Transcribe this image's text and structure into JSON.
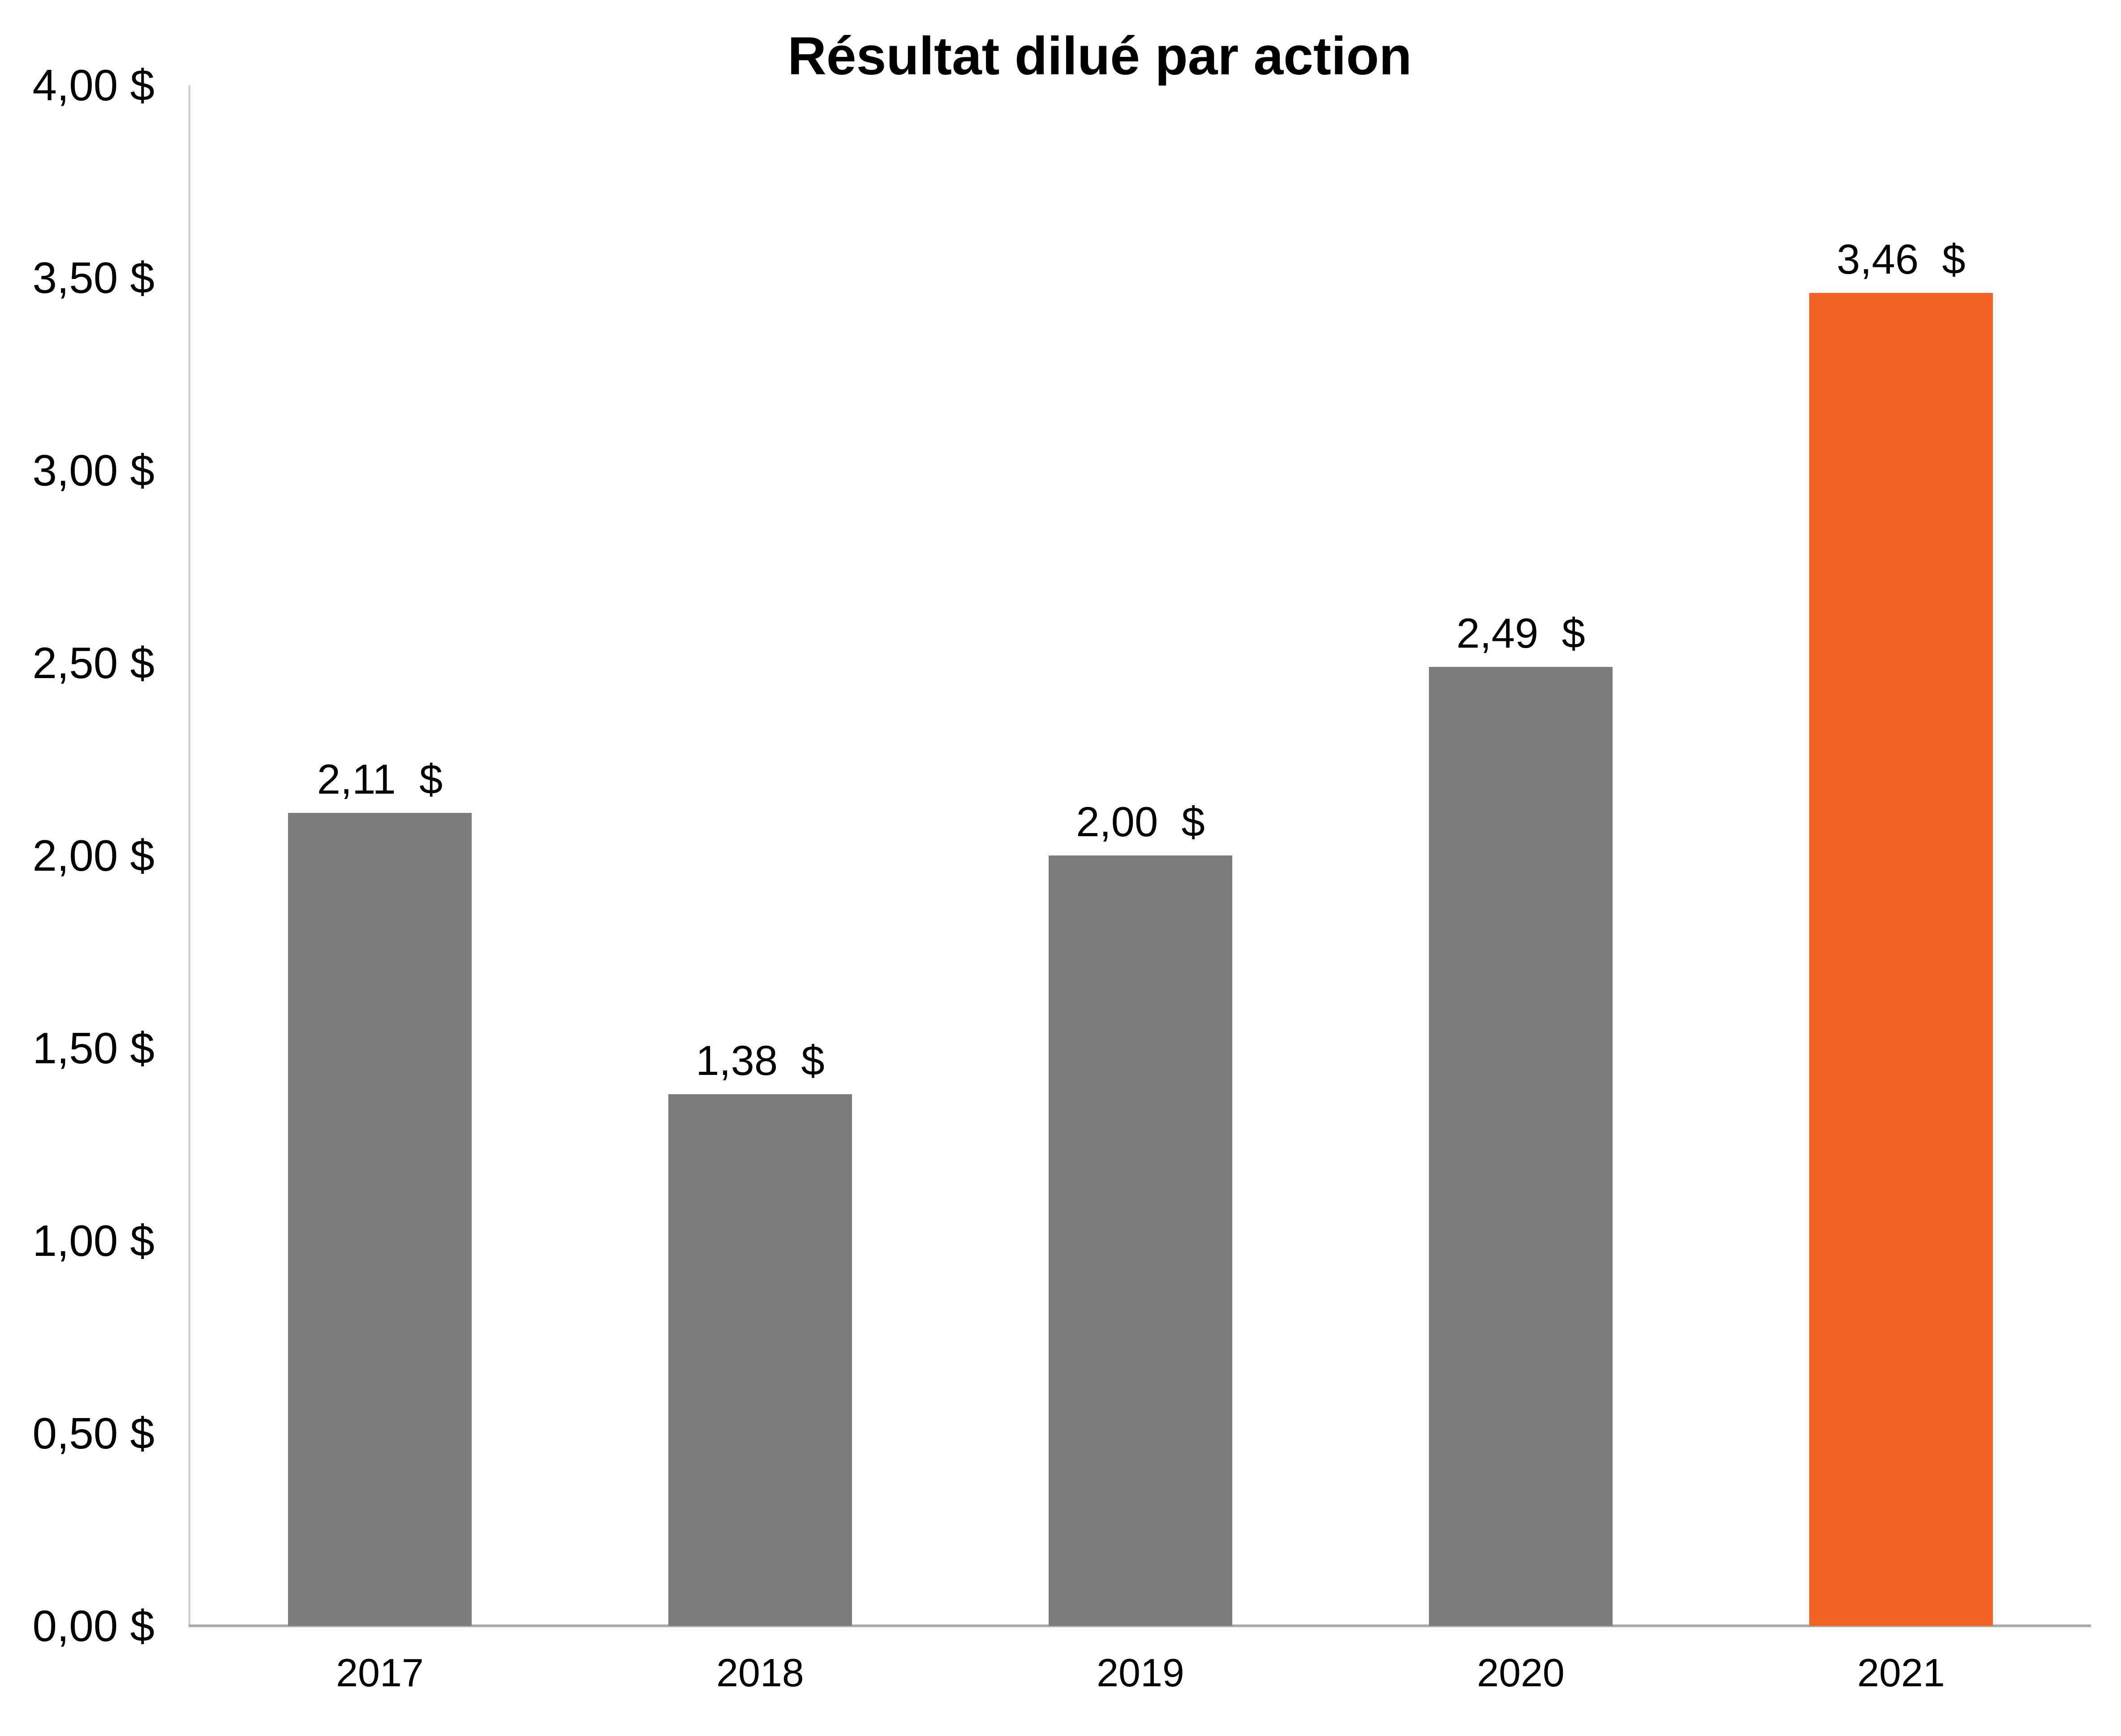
{
  "chart_data": {
    "type": "bar",
    "title": "Résultat dilué par action",
    "categories": [
      "2017",
      "2018",
      "2019",
      "2020",
      "2021"
    ],
    "values": [
      2.11,
      1.38,
      2.0,
      2.49,
      3.46
    ],
    "value_labels": [
      "2,11  $",
      "1,38  $",
      "2,00  $",
      "2,49  $",
      "3,46  $"
    ],
    "bar_colors": [
      "#7C7C7C",
      "#7C7C7C",
      "#7C7C7C",
      "#7C7C7C",
      "#F26323"
    ],
    "highlight_category": "2021",
    "ytick_values": [
      0,
      0.5,
      1,
      1.5,
      2,
      2.5,
      3,
      3.5,
      4
    ],
    "ytick_labels": [
      "0,00 $",
      "0,50 $",
      "1,00 $",
      "1,50 $",
      "2,00 $",
      "2,50 $",
      "3,00 $",
      "3,50 $",
      "4,00 $"
    ],
    "ylim": [
      0,
      4
    ],
    "xlabel": "",
    "ylabel": "",
    "grid": false,
    "legend": false,
    "colors": {
      "bar_default": "#7C7C7C",
      "bar_highlight": "#F26323",
      "axis_vertical": "#CCCCCC",
      "axis_horizontal": "#ABABAB",
      "text": "#000000",
      "background": "#FFFFFF"
    }
  }
}
